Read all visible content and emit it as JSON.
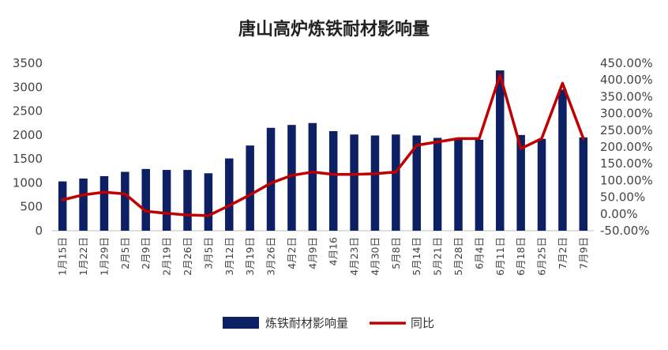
{
  "chart_data": {
    "type": "bar",
    "title": "唐山高炉炼铁耐材影响量",
    "categories": [
      "1月15日",
      "1月22日",
      "1月29日",
      "2月5日",
      "2月9日",
      "2月19日",
      "2月26日",
      "3月5日",
      "3月12日",
      "3月19日",
      "3月26日",
      "4月2日",
      "4月9日",
      "4月16",
      "4月23日",
      "4月30日",
      "5月8日",
      "5月14日",
      "5月21日",
      "5月28日",
      "6月4日",
      "6月11日",
      "6月18日",
      "6月25日",
      "7月2日",
      "7月9日"
    ],
    "y_left": {
      "ticks": [
        "0",
        "500",
        "1000",
        "1500",
        "2000",
        "2500",
        "3000",
        "3500"
      ],
      "ylim": [
        0,
        3500
      ]
    },
    "y_right": {
      "ticks": [
        "-50.00%",
        "0.00%",
        "50.00%",
        "100.00%",
        "150.00%",
        "200.00%",
        "250.00%",
        "300.00%",
        "350.00%",
        "400.00%",
        "450.00%"
      ],
      "ylim": [
        -50,
        450
      ]
    },
    "series": [
      {
        "name": "炼铁耐材影响量",
        "type": "bar",
        "axis": "left",
        "color": "#0d2063",
        "values": [
          1030,
          1090,
          1140,
          1230,
          1290,
          1270,
          1270,
          1200,
          1510,
          1780,
          2150,
          2210,
          2250,
          2080,
          2010,
          1990,
          2010,
          1990,
          1940,
          1900,
          1900,
          3350,
          2000,
          1920,
          2950,
          1950
        ]
      },
      {
        "name": "同比",
        "type": "line",
        "axis": "right",
        "color": "#c00000",
        "values": [
          42,
          57,
          65,
          60,
          8,
          2,
          -3,
          -5,
          25,
          57,
          92,
          115,
          125,
          118,
          118,
          120,
          125,
          205,
          215,
          225,
          225,
          415,
          195,
          225,
          390,
          225
        ]
      }
    ],
    "legend": "bottom",
    "grid": false
  }
}
